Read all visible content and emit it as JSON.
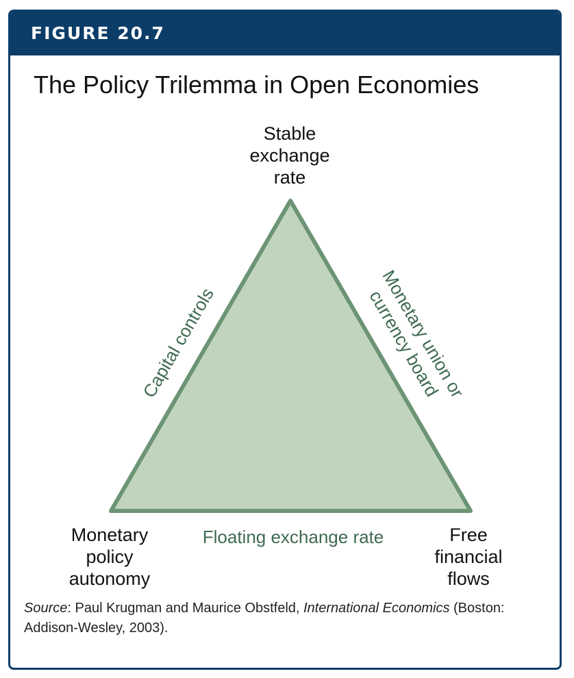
{
  "figure": {
    "label": "FIGURE 20.7",
    "title": "The Policy Trilemma in Open Economies"
  },
  "diagram": {
    "vertices": {
      "top": [
        "Stable",
        "exchange",
        "rate"
      ],
      "bottom_left": [
        "Monetary",
        "policy",
        "autonomy"
      ],
      "bottom_right": [
        "Free",
        "financial",
        "flows"
      ]
    },
    "edges": {
      "left": "Capital controls",
      "right_line1": "Monetary union or",
      "right_line2": "currency board",
      "bottom": "Floating exchange rate"
    },
    "colors": {
      "fill": "#c1d4bd",
      "stroke": "#6c9475",
      "edge_text": "#3f6a50"
    }
  },
  "source": {
    "label": "Source",
    "text_before_italic": ": Paul Krugman and Maurice Obstfeld, ",
    "italic": "International Economics",
    "text_after_italic": " (Boston: Addison-Wesley, 2003)."
  },
  "colors": {
    "banner": "#0c3d69",
    "border": "#0c3d69"
  }
}
